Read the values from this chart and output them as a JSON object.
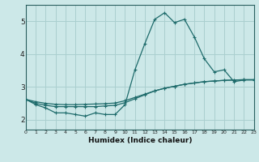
{
  "title": "",
  "xlabel": "Humidex (Indice chaleur)",
  "ylabel": "",
  "bg_color": "#cce8e8",
  "line_color": "#1e6b6b",
  "grid_color": "#aacfcf",
  "spine_color": "#2a6060",
  "x": [
    0,
    1,
    2,
    3,
    4,
    5,
    6,
    7,
    8,
    9,
    10,
    11,
    12,
    13,
    14,
    15,
    16,
    17,
    18,
    19,
    20,
    21,
    22,
    23
  ],
  "line1": [
    2.62,
    2.46,
    2.36,
    2.21,
    2.21,
    2.16,
    2.11,
    2.21,
    2.16,
    2.16,
    2.46,
    3.52,
    4.32,
    5.06,
    5.26,
    4.96,
    5.06,
    4.52,
    3.86,
    3.46,
    3.52,
    3.16,
    3.21,
    3.21
  ],
  "line2": [
    2.62,
    2.55,
    2.5,
    2.47,
    2.46,
    2.46,
    2.47,
    2.48,
    2.49,
    2.51,
    2.58,
    2.68,
    2.78,
    2.88,
    2.96,
    3.02,
    3.08,
    3.12,
    3.16,
    3.18,
    3.2,
    3.21,
    3.22,
    3.22
  ],
  "line3": [
    2.62,
    2.5,
    2.44,
    2.4,
    2.4,
    2.4,
    2.4,
    2.4,
    2.42,
    2.44,
    2.52,
    2.64,
    2.76,
    2.88,
    2.96,
    3.02,
    3.08,
    3.12,
    3.16,
    3.18,
    3.2,
    3.21,
    3.22,
    3.22
  ],
  "xlim": [
    0,
    23
  ],
  "ylim": [
    1.7,
    5.5
  ],
  "yticks": [
    2,
    3,
    4,
    5
  ],
  "xticks": [
    0,
    1,
    2,
    3,
    4,
    5,
    6,
    7,
    8,
    9,
    10,
    11,
    12,
    13,
    14,
    15,
    16,
    17,
    18,
    19,
    20,
    21,
    22,
    23
  ],
  "figsize": [
    3.2,
    2.0
  ],
  "dpi": 100
}
